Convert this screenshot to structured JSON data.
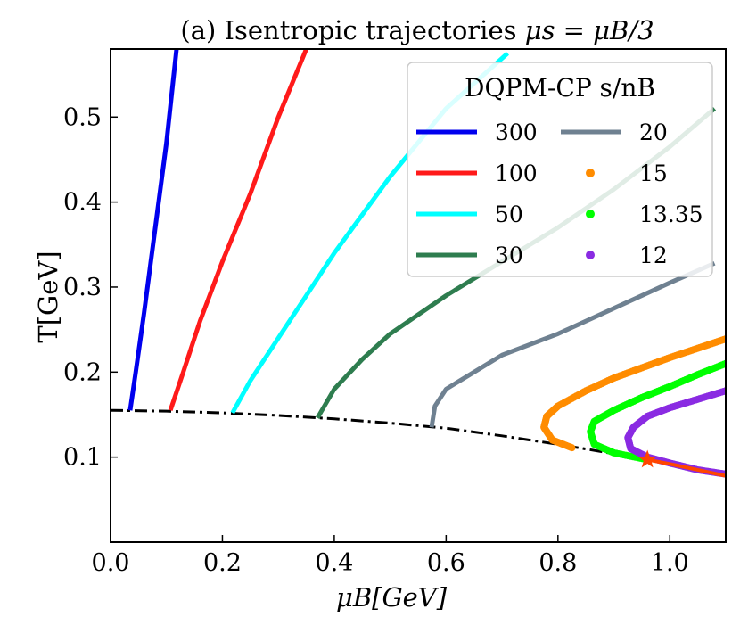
{
  "chart_data": {
    "type": "line",
    "title_prefix": "(a) Isentropic trajectories ",
    "title_math": "μs = μB/3",
    "xlabel": "μB[GeV]",
    "ylabel": "T[GeV]",
    "xlim": [
      0.0,
      1.1
    ],
    "ylim": [
      0.0,
      0.58
    ],
    "xticks": [
      "0.0",
      "0.2",
      "0.4",
      "0.6",
      "0.8",
      "1.0"
    ],
    "yticks": [
      "0.1",
      "0.2",
      "0.3",
      "0.4",
      "0.5"
    ],
    "legend_title": "DQPM-CP s/nB",
    "legend_position": "top-right",
    "grid": false,
    "series": [
      {
        "name": "300",
        "style": "line",
        "color": "#0000ee",
        "x": [
          0.035,
          0.045,
          0.06,
          0.08,
          0.1,
          0.118
        ],
        "y": [
          0.155,
          0.2,
          0.27,
          0.37,
          0.47,
          0.58
        ]
      },
      {
        "name": "100",
        "style": "line",
        "color": "#ff1a1a",
        "x": [
          0.107,
          0.13,
          0.16,
          0.2,
          0.25,
          0.3,
          0.35
        ],
        "y": [
          0.155,
          0.2,
          0.26,
          0.33,
          0.41,
          0.5,
          0.58
        ]
      },
      {
        "name": "50",
        "style": "line",
        "color": "#00ffff",
        "x": [
          0.218,
          0.25,
          0.3,
          0.35,
          0.4,
          0.5,
          0.6,
          0.71
        ],
        "y": [
          0.152,
          0.19,
          0.24,
          0.29,
          0.34,
          0.43,
          0.51,
          0.575
        ]
      },
      {
        "name": "30",
        "style": "line",
        "color": "#2e7d4f",
        "x": [
          0.37,
          0.4,
          0.45,
          0.5,
          0.6,
          0.7,
          0.8,
          0.9,
          1.0,
          1.08
        ],
        "y": [
          0.146,
          0.18,
          0.215,
          0.245,
          0.29,
          0.33,
          0.37,
          0.415,
          0.465,
          0.51
        ]
      },
      {
        "name": "20",
        "style": "line",
        "color": "#6f8191",
        "x": [
          0.574,
          0.58,
          0.6,
          0.65,
          0.7,
          0.8,
          0.9,
          1.0,
          1.08
        ],
        "y": [
          0.135,
          0.16,
          0.18,
          0.2,
          0.22,
          0.245,
          0.275,
          0.305,
          0.328
        ]
      },
      {
        "name": "15",
        "style": "dots",
        "color": "#ff8c00",
        "x": [
          0.825,
          0.79,
          0.775,
          0.78,
          0.8,
          0.85,
          0.9,
          0.95,
          1.0,
          1.05,
          1.1
        ],
        "y": [
          0.111,
          0.12,
          0.135,
          0.148,
          0.16,
          0.178,
          0.193,
          0.205,
          0.217,
          0.228,
          0.239
        ]
      },
      {
        "name": "13.35",
        "style": "dots",
        "color": "#00ff00",
        "x": [
          0.96,
          0.9,
          0.865,
          0.858,
          0.865,
          0.9,
          0.95,
          1.0,
          1.05,
          1.1
        ],
        "y": [
          0.097,
          0.105,
          0.115,
          0.13,
          0.142,
          0.155,
          0.17,
          0.183,
          0.197,
          0.21
        ]
      },
      {
        "name": "12",
        "style": "dots",
        "color": "#8a2be2",
        "x": [
          1.1,
          1.05,
          1.0,
          0.96,
          0.93,
          0.925,
          0.935,
          0.96,
          1.0,
          1.05,
          1.1
        ],
        "y": [
          0.08,
          0.085,
          0.093,
          0.1,
          0.11,
          0.123,
          0.135,
          0.148,
          0.158,
          0.168,
          0.178
        ]
      }
    ],
    "crossover_line": {
      "color": "#000000",
      "x": [
        0.0,
        0.1,
        0.2,
        0.3,
        0.4,
        0.5,
        0.6,
        0.7,
        0.8,
        0.9,
        0.96
      ],
      "y": [
        0.155,
        0.154,
        0.152,
        0.149,
        0.145,
        0.14,
        0.134,
        0.125,
        0.115,
        0.104,
        0.097
      ]
    },
    "first_order_line": {
      "color": "#ff4500",
      "x": [
        0.96,
        1.0,
        1.05,
        1.1
      ],
      "y": [
        0.097,
        0.092,
        0.085,
        0.078
      ]
    },
    "critical_point": {
      "x": 0.96,
      "y": 0.097,
      "color": "#ff4500"
    }
  }
}
